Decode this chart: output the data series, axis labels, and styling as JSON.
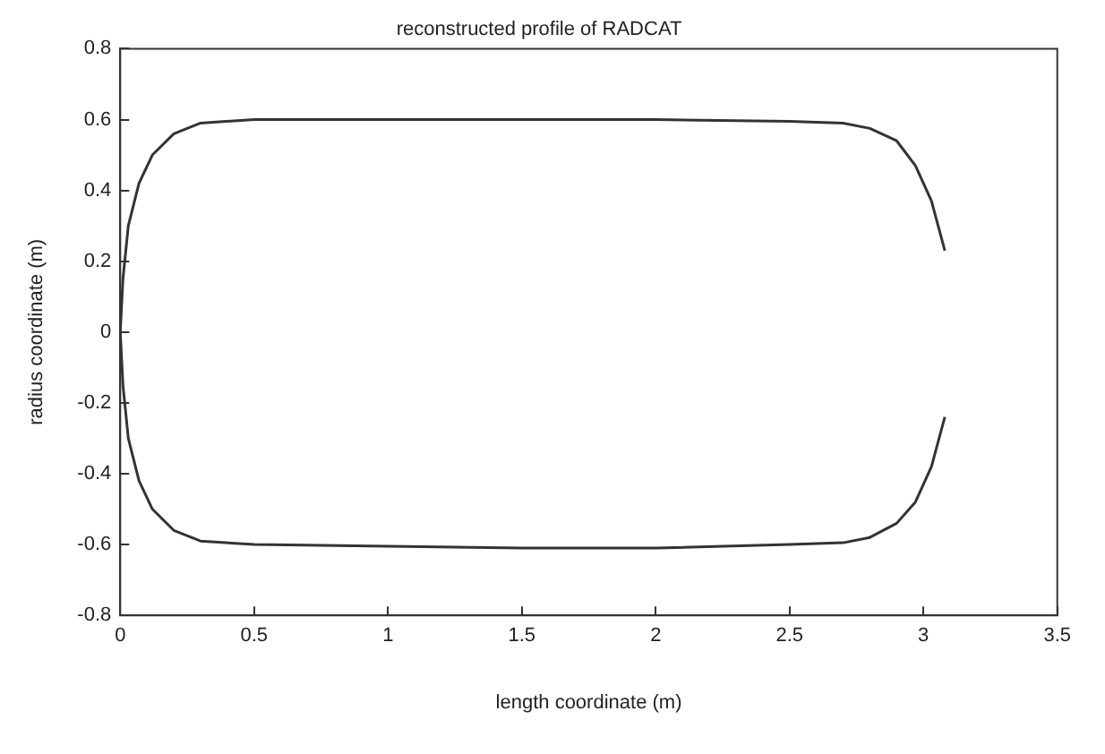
{
  "chart_data": {
    "type": "line",
    "title": "reconstructed profile of RADCAT",
    "xlabel": "length coordinate (m)",
    "ylabel": "radius coordinate (m)",
    "series": [
      {
        "color": "#333333",
        "x": [
          3.08,
          3.03,
          2.97,
          2.9,
          2.8,
          2.7,
          2.5,
          2,
          1.5,
          1,
          0.5,
          0.3,
          0.2,
          0.12,
          0.07,
          0.03,
          0.01,
          0,
          0.01,
          0.03,
          0.07,
          0.12,
          0.2,
          0.3,
          0.5,
          1,
          1.5,
          2,
          2.5,
          2.7,
          2.8,
          2.9,
          2.97,
          3.03,
          3.08
        ],
        "values": [
          -0.24,
          -0.38,
          -0.48,
          -0.54,
          -0.58,
          -0.595,
          -0.6,
          -0.61,
          -0.61,
          -0.605,
          -0.6,
          -0.59,
          -0.56,
          -0.5,
          -0.42,
          -0.3,
          -0.15,
          0,
          0.15,
          0.3,
          0.42,
          0.5,
          0.56,
          0.59,
          0.6,
          0.6,
          0.6,
          0.6,
          0.595,
          0.59,
          0.575,
          0.54,
          0.47,
          0.37,
          0.23
        ]
      }
    ],
    "xlim": [
      0,
      3.5
    ],
    "xticks": [
      0,
      0.5,
      1,
      1.5,
      2,
      2.5,
      3,
      3.5
    ],
    "ylim": [
      -0.8,
      0.8
    ],
    "yticks": [
      -0.8,
      -0.6,
      -0.4,
      -0.2,
      0,
      0.2,
      0.4,
      0.6,
      0.8
    ],
    "grid": false,
    "legend": false,
    "marker": "none",
    "line_style": "solid"
  }
}
